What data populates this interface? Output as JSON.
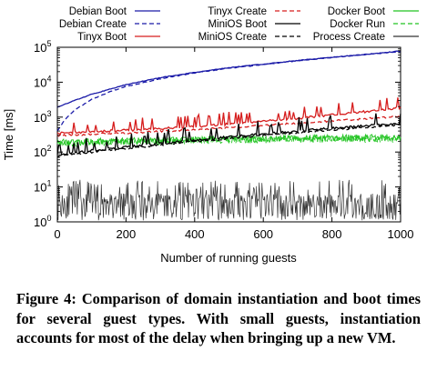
{
  "chart_data": {
    "type": "line",
    "xlabel": "Number of running guests",
    "ylabel": "Time [ms]",
    "xlim": [
      0,
      1000
    ],
    "ylim": [
      1,
      100000
    ],
    "yscale": "log",
    "xticks": [
      "0",
      "200",
      "400",
      "600",
      "800",
      "1000"
    ],
    "yticks": [
      {
        "base": "10",
        "exp": "0"
      },
      {
        "base": "10",
        "exp": "1"
      },
      {
        "base": "10",
        "exp": "2"
      },
      {
        "base": "10",
        "exp": "3"
      },
      {
        "base": "10",
        "exp": "4"
      },
      {
        "base": "10",
        "exp": "5"
      }
    ],
    "grid": false,
    "legend_placement": "top",
    "series": [
      {
        "name": "Debian Boot",
        "color": "#1a1aa8",
        "dash": "solid",
        "x": [
          0,
          50,
          100,
          200,
          300,
          400,
          500,
          600,
          700,
          800,
          900,
          1000
        ],
        "y": [
          1900,
          3000,
          4500,
          8500,
          13500,
          19000,
          26000,
          33000,
          42000,
          52000,
          63000,
          78000
        ]
      },
      {
        "name": "Debian Create",
        "color": "#1a1aa8",
        "dash": "dashed",
        "x": [
          0,
          20,
          50,
          100,
          150,
          200,
          300,
          400,
          500,
          600,
          700,
          800,
          900,
          1000
        ],
        "y": [
          400,
          800,
          1600,
          3200,
          5200,
          7500,
          12500,
          18500,
          25000,
          32000,
          41000,
          51000,
          62000,
          76000
        ]
      },
      {
        "name": "Tinyx Boot",
        "color": "#d61e1e",
        "dash": "solid",
        "x": [
          0,
          100,
          200,
          300,
          400,
          500,
          600,
          700,
          800,
          900,
          1000
        ],
        "y": [
          350,
          380,
          420,
          470,
          540,
          630,
          760,
          920,
          1150,
          1450,
          1900
        ]
      },
      {
        "name": "Tinyx Create",
        "color": "#d61e1e",
        "dash": "dashed",
        "x": [
          0,
          100,
          200,
          300,
          400,
          500,
          600,
          700,
          800,
          900,
          1000
        ],
        "y": [
          300,
          320,
          350,
          390,
          440,
          500,
          580,
          670,
          780,
          900,
          1050
        ]
      },
      {
        "name": "MiniOS Boot",
        "color": "#000000",
        "dash": "solid",
        "x": [
          0,
          100,
          200,
          300,
          400,
          500,
          600,
          700,
          800,
          900,
          1000
        ],
        "y": [
          85,
          110,
          140,
          175,
          220,
          270,
          330,
          400,
          480,
          570,
          680
        ]
      },
      {
        "name": "MiniOS Create",
        "color": "#000000",
        "dash": "dashed",
        "x": [
          0,
          100,
          200,
          300,
          400,
          500,
          600,
          700,
          800,
          900,
          1000
        ],
        "y": [
          75,
          100,
          125,
          160,
          200,
          245,
          300,
          360,
          430,
          510,
          600
        ]
      },
      {
        "name": "Docker Boot",
        "color": "#22c422",
        "dash": "solid",
        "x": [
          0,
          100,
          200,
          300,
          400,
          500,
          600,
          700,
          800,
          900,
          1000
        ],
        "y": [
          190,
          200,
          210,
          220,
          230,
          240,
          245,
          250,
          255,
          260,
          270
        ]
      },
      {
        "name": "Docker Run",
        "color": "#22c422",
        "dash": "dashed",
        "x": [
          0,
          100,
          200,
          300,
          400,
          500,
          600,
          700,
          800,
          900,
          1000
        ],
        "y": [
          180,
          190,
          200,
          205,
          215,
          225,
          230,
          235,
          240,
          245,
          250
        ]
      },
      {
        "name": "Process Create",
        "color": "#333333",
        "dash": "solid",
        "x": [
          0,
          100,
          200,
          300,
          400,
          500,
          600,
          700,
          800,
          900,
          1000
        ],
        "y": [
          4,
          3.5,
          3.5,
          3.5,
          4,
          3.5,
          3.5,
          3.5,
          3.5,
          3.5,
          3.5
        ]
      }
    ]
  },
  "caption": "Figure 4: Comparison of domain instantiation and boot times for several guest types. With small guests, instantiation accounts for most of the delay when bringing up a new VM."
}
